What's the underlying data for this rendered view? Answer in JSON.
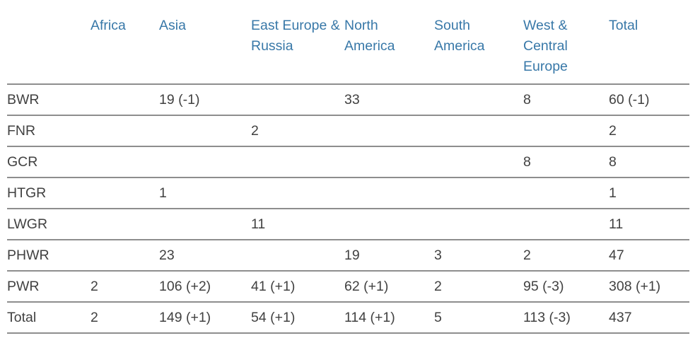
{
  "chart_data": {
    "type": "table",
    "columns": [
      "",
      "Africa",
      "Asia",
      "East Europe & Russia",
      "North America",
      "South America",
      "West & Central Europe",
      "Total"
    ],
    "rows": [
      {
        "label": "BWR",
        "values": [
          "",
          "19 (-1)",
          "",
          "33",
          "",
          "8",
          "60 (-1)"
        ]
      },
      {
        "label": "FNR",
        "values": [
          "",
          "",
          "2",
          "",
          "",
          "",
          "2"
        ]
      },
      {
        "label": "GCR",
        "values": [
          "",
          "",
          "",
          "",
          "",
          "8",
          "8"
        ]
      },
      {
        "label": "HTGR",
        "values": [
          "",
          "1",
          "",
          "",
          "",
          "",
          "1"
        ]
      },
      {
        "label": "LWGR",
        "values": [
          "",
          "",
          "11",
          "",
          "",
          "",
          "11"
        ]
      },
      {
        "label": "PHWR",
        "values": [
          "",
          "23",
          "",
          "19",
          "3",
          "2",
          "47"
        ]
      },
      {
        "label": "PWR",
        "values": [
          "2",
          "106 (+2)",
          "41 (+1)",
          "62 (+1)",
          "2",
          "95 (-3)",
          "308 (+1)"
        ]
      },
      {
        "label": "Total",
        "values": [
          "2",
          "149 (+1)",
          "54 (+1)",
          "114 (+1)",
          "5",
          "113 (-3)",
          "437"
        ]
      }
    ],
    "colors": {
      "header_text": "#3878A8",
      "body_text": "#414141",
      "rule": "#8E8E8E",
      "background": "#FFFFFF"
    },
    "layout_hints": {
      "grid": "horizontal-rules-only",
      "value_format": "count (change-in-parentheses)"
    }
  }
}
